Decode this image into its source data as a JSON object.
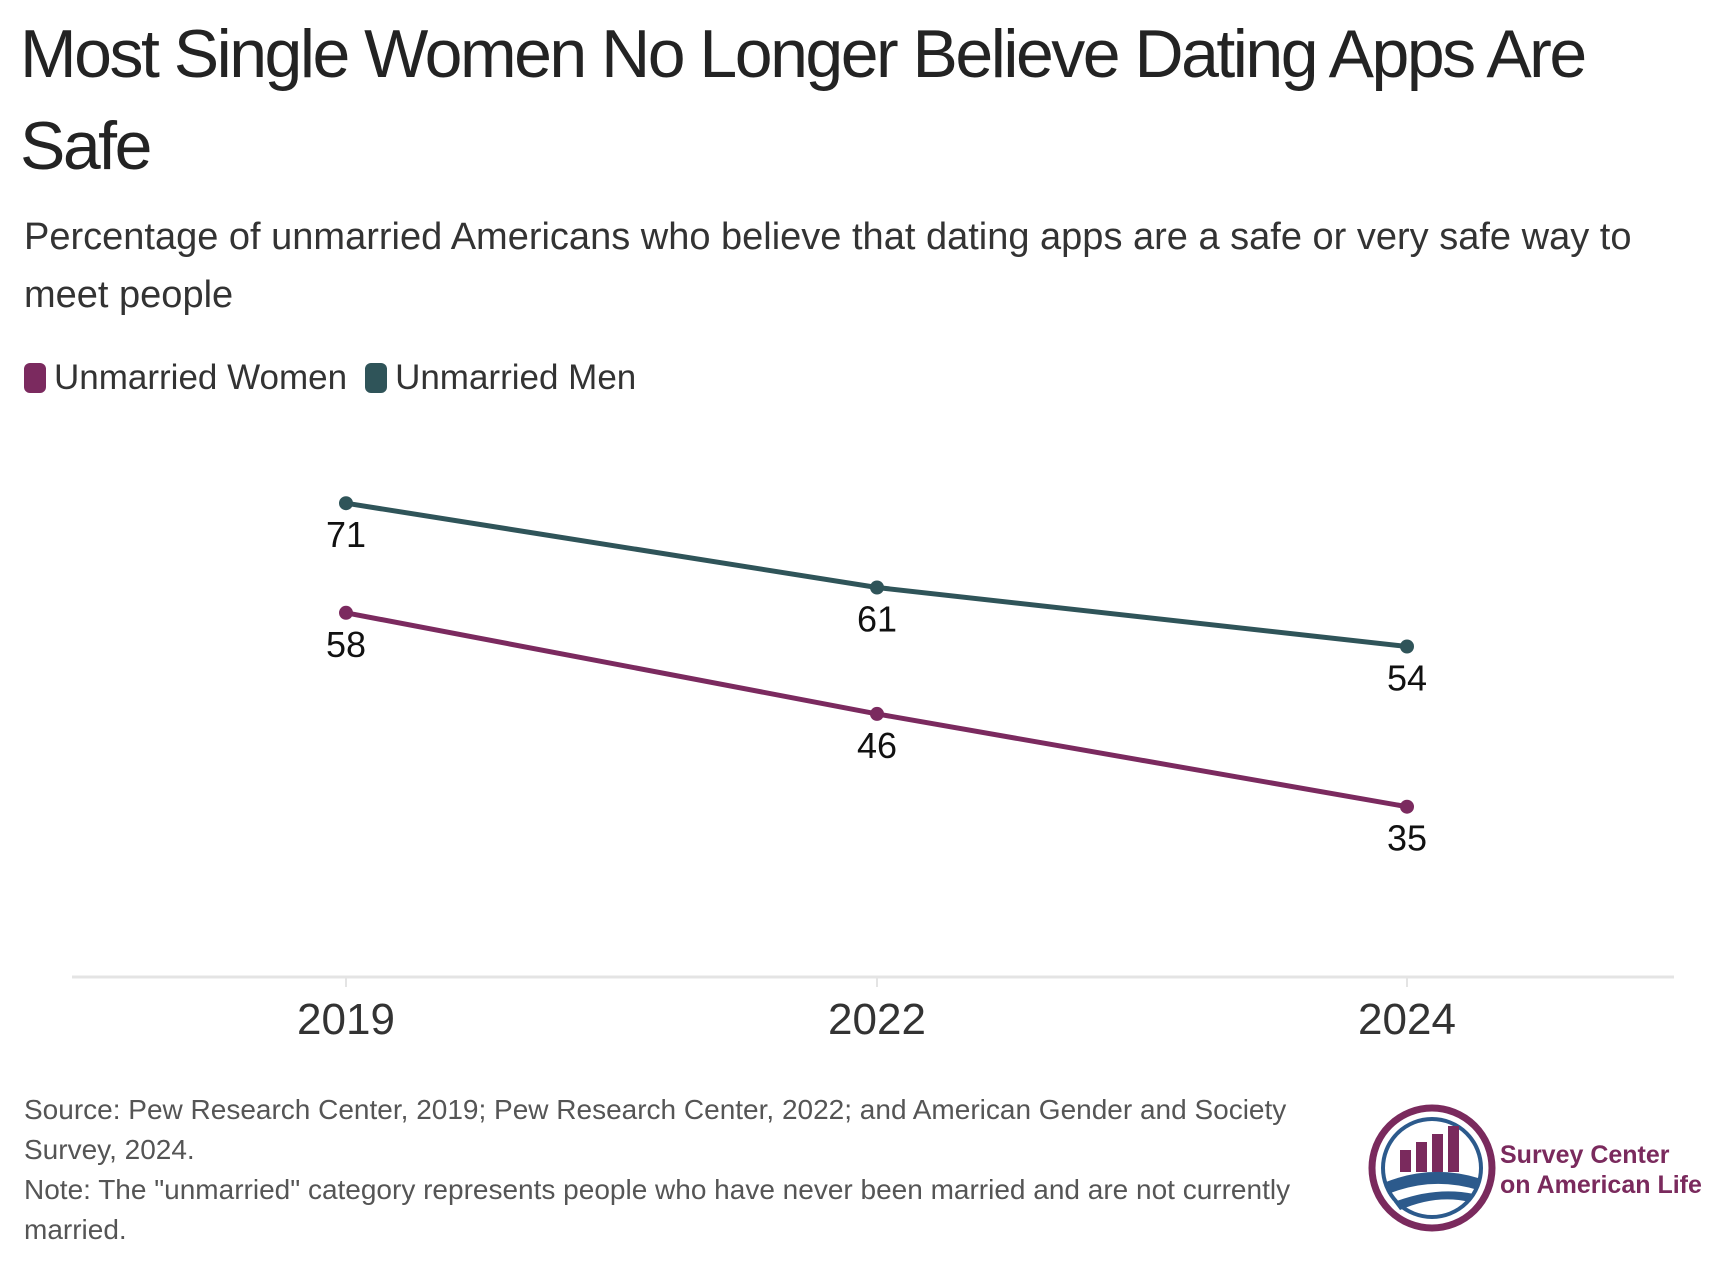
{
  "title": "Most Single Women No Longer Believe Dating Apps Are Safe",
  "subtitle": "Percentage of unmarried Americans who believe that dating apps are a safe or very safe way to meet people",
  "colors": {
    "women": "#7b2a5f",
    "men": "#2f5459",
    "axis": "#e4e4e4"
  },
  "chart_data": {
    "type": "line",
    "x": [
      "2019",
      "2022",
      "2024"
    ],
    "series": [
      {
        "name": "Unmarried Women",
        "color": "#7b2a5f",
        "values": [
          58,
          46,
          35
        ]
      },
      {
        "name": "Unmarried Men",
        "color": "#2f5459",
        "values": [
          71,
          61,
          54
        ]
      }
    ],
    "xlabel": "",
    "ylabel": "",
    "ylim": [
      0,
      100
    ],
    "grid": false,
    "legend_position": "top-left"
  },
  "footnote": {
    "source": "Source: Pew Research Center, 2019; Pew Research Center, 2022; and American Gender and Society Survey, 2024.",
    "note": "Note: The \"unmarried\" category represents people who have never been married and are not currently married."
  },
  "logo": {
    "line1": "Survey Center",
    "line2": "on American Life"
  }
}
